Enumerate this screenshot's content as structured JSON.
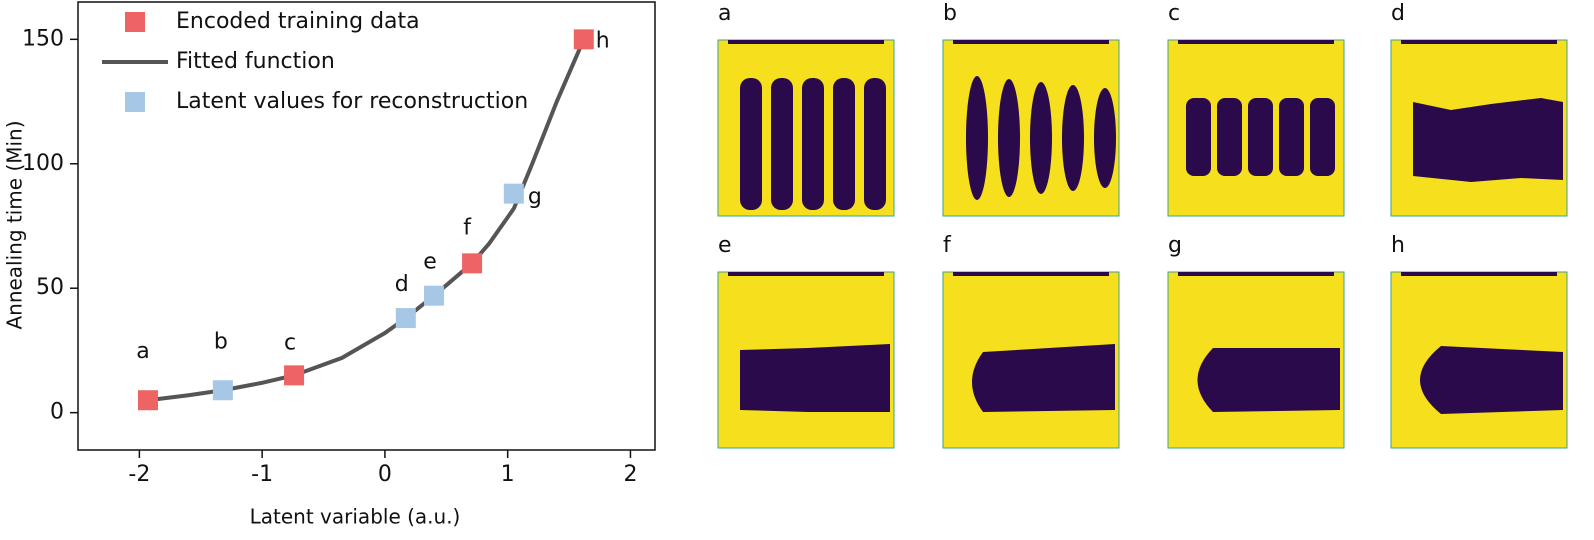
{
  "chart_data": {
    "type": "scatter",
    "xlabel": "Latent variable (a.u.)",
    "ylabel": "Annealing time (Min)",
    "xlim": [
      -2.5,
      2.2
    ],
    "ylim": [
      -15,
      165
    ],
    "xticks": [
      -2,
      -1,
      0,
      1,
      2
    ],
    "yticks": [
      0,
      50,
      100,
      150
    ],
    "legend": "upper left",
    "series": [
      {
        "name": "Encoded training data",
        "marker": "square",
        "color": "#ee6464",
        "x": [
          -1.93,
          -0.74,
          0.71,
          1.62
        ],
        "y": [
          5,
          15,
          60,
          150
        ],
        "labels": [
          "a",
          "c",
          "f",
          "h"
        ]
      },
      {
        "name": "Fitted function",
        "type": "line",
        "color": "#555555",
        "x": [
          -1.93,
          -1.6,
          -1.32,
          -1.0,
          -0.74,
          -0.35,
          0.0,
          0.17,
          0.4,
          0.71,
          0.85,
          1.05,
          1.2,
          1.4,
          1.62
        ],
        "y": [
          5,
          7,
          9,
          12,
          15,
          22,
          32,
          38,
          47,
          60,
          68,
          82,
          100,
          125,
          150
        ]
      },
      {
        "name": "Latent values for reconstruction",
        "marker": "square",
        "color": "#a7c7e7",
        "x": [
          -1.32,
          0.17,
          0.4,
          1.05
        ],
        "y": [
          9,
          38,
          47,
          88
        ],
        "labels": [
          "b",
          "d",
          "e",
          "g"
        ]
      }
    ]
  },
  "panels": [
    "a",
    "b",
    "c",
    "d",
    "e",
    "f",
    "g",
    "h"
  ]
}
